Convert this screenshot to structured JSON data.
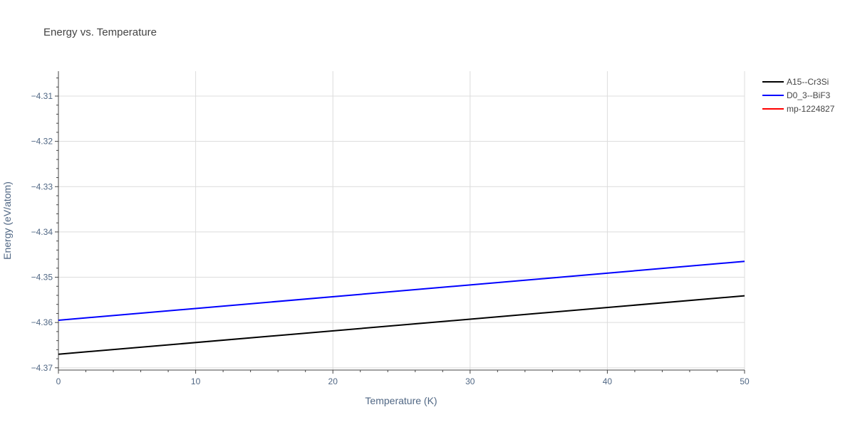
{
  "chart_data": {
    "type": "line",
    "title": "Energy vs. Temperature",
    "xlabel": "Temperature (K)",
    "ylabel": "Energy (eV/atom)",
    "xlim": [
      0,
      50
    ],
    "ylim": [
      -4.3705,
      -4.3045
    ],
    "x_ticks": [
      0,
      10,
      20,
      30,
      40,
      50
    ],
    "x_tick_labels": [
      "0",
      "10",
      "20",
      "30",
      "40",
      "50"
    ],
    "y_ticks": [
      -4.37,
      -4.36,
      -4.35,
      -4.34,
      -4.33,
      -4.32,
      -4.31
    ],
    "y_tick_labels": [
      "−4.37",
      "−4.36",
      "−4.35",
      "−4.34",
      "−4.33",
      "−4.32",
      "−4.31"
    ],
    "grid": true,
    "legend_position": "top-right",
    "series": [
      {
        "name": "A15--Cr3Si",
        "color": "#000000",
        "x": [
          0,
          50
        ],
        "y": [
          -4.367,
          -4.3541
        ]
      },
      {
        "name": "D0_3--BiF3",
        "color": "#0000ff",
        "x": [
          0,
          50
        ],
        "y": [
          -4.3595,
          -4.3465
        ]
      },
      {
        "name": "mp-1224827",
        "color": "#ff0000",
        "x": [],
        "y": []
      }
    ]
  }
}
